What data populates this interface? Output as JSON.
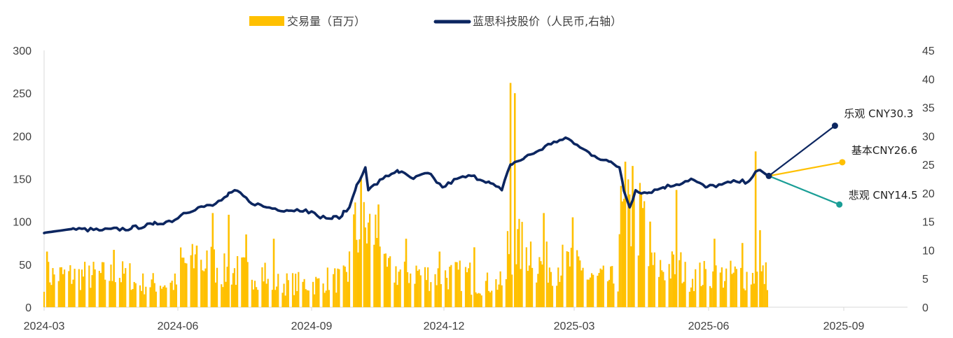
{
  "colors": {
    "volume": "#FFC000",
    "price": "#0C2660",
    "bull": "#0C2660",
    "base": "#FFC000",
    "bear": "#1A9E96",
    "axis": "#D9D9D9"
  },
  "legend": {
    "volume": "交易量（百万）",
    "price": "蓝思科技股价（人民币,右轴）"
  },
  "chart_data": {
    "type": "bar+line",
    "x_ticks": [
      "2024-03",
      "2024-06",
      "2024-09",
      "2024-12",
      "2025-03",
      "2025-06",
      "2025-09"
    ],
    "y_left": {
      "range": [
        0,
        300
      ],
      "ticks": [
        "0",
        "50",
        "100",
        "150",
        "200",
        "250",
        "300"
      ]
    },
    "y_right": {
      "range": [
        0,
        45
      ],
      "ticks": [
        "0",
        "5",
        "10",
        "15",
        "20",
        "25",
        "30",
        "35",
        "40",
        "45"
      ]
    },
    "price_series": [
      [
        "2024-03-01",
        13.0
      ],
      [
        "2024-03-20",
        13.7
      ],
      [
        "2024-04-10",
        13.5
      ],
      [
        "2024-04-30",
        13.8
      ],
      [
        "2024-05-15",
        14.5
      ],
      [
        "2024-05-30",
        15.3
      ],
      [
        "2024-06-05",
        16.5
      ],
      [
        "2024-06-15",
        17.5
      ],
      [
        "2024-06-25",
        17.8
      ],
      [
        "2024-07-05",
        19.5
      ],
      [
        "2024-07-12",
        20.4
      ],
      [
        "2024-07-20",
        18.5
      ],
      [
        "2024-08-01",
        17.5
      ],
      [
        "2024-08-15",
        17.0
      ],
      [
        "2024-08-28",
        17.1
      ],
      [
        "2024-09-05",
        16.0
      ],
      [
        "2024-09-15",
        15.5
      ],
      [
        "2024-09-22",
        16.0
      ],
      [
        "2024-09-27",
        17.5
      ],
      [
        "2024-10-01",
        20.5
      ],
      [
        "2024-10-08",
        24.5
      ],
      [
        "2024-10-10",
        20.5
      ],
      [
        "2024-10-20",
        22.5
      ],
      [
        "2024-10-30",
        24.0
      ],
      [
        "2024-11-10",
        22.5
      ],
      [
        "2024-11-20",
        23.5
      ],
      [
        "2024-11-30",
        21.0
      ],
      [
        "2024-12-10",
        22.5
      ],
      [
        "2024-12-20",
        23.0
      ],
      [
        "2025-01-01",
        22.0
      ],
      [
        "2025-01-10",
        20.5
      ],
      [
        "2025-01-16",
        25.0
      ],
      [
        "2025-01-25",
        26.0
      ],
      [
        "2025-02-05",
        27.5
      ],
      [
        "2025-02-15",
        29.0
      ],
      [
        "2025-02-25",
        29.5
      ],
      [
        "2025-03-05",
        28.0
      ],
      [
        "2025-03-15",
        26.5
      ],
      [
        "2025-03-25",
        25.5
      ],
      [
        "2025-04-01",
        24.5
      ],
      [
        "2025-04-03",
        22.0
      ],
      [
        "2025-04-08",
        17.5
      ],
      [
        "2025-04-12",
        20.5
      ],
      [
        "2025-04-20",
        20.0
      ],
      [
        "2025-05-01",
        21.0
      ],
      [
        "2025-05-10",
        21.5
      ],
      [
        "2025-05-20",
        22.5
      ],
      [
        "2025-05-30",
        21.0
      ],
      [
        "2025-06-10",
        21.5
      ],
      [
        "2025-06-20",
        22.0
      ],
      [
        "2025-06-28",
        22.0
      ],
      [
        "2025-07-05",
        24.0
      ],
      [
        "2025-07-12",
        23.0
      ]
    ],
    "scenarios": [
      {
        "label": "乐观 CNY30.3",
        "start": [
          "2025-07-12",
          23.0
        ],
        "end": [
          "2025-08-26",
          31.8
        ],
        "color_key": "bull"
      },
      {
        "label": "基本CNY26.6",
        "start": [
          "2025-07-12",
          23.0
        ],
        "end": [
          "2025-08-31",
          25.4
        ],
        "color_key": "base"
      },
      {
        "label": "悲观 CNY14.5",
        "start": [
          "2025-07-12",
          23.0
        ],
        "end": [
          "2025-08-29",
          18.0
        ],
        "color_key": "bear"
      }
    ],
    "volume_segments": [
      [
        "2024-03-01",
        "2024-05-01",
        40
      ],
      [
        "2024-05-01",
        "2024-06-01",
        30
      ],
      [
        "2024-06-01",
        "2024-07-01",
        55
      ],
      [
        "2024-07-01",
        "2024-08-01",
        45
      ],
      [
        "2024-08-01",
        "2024-09-10",
        30
      ],
      [
        "2024-09-10",
        "2024-09-27",
        35
      ],
      [
        "2024-09-27",
        "2024-10-20",
        95
      ],
      [
        "2024-10-20",
        "2024-11-15",
        45
      ],
      [
        "2024-11-15",
        "2024-12-20",
        40
      ],
      [
        "2024-12-20",
        "2025-01-14",
        30
      ],
      [
        "2025-01-14",
        "2025-02-01",
        75
      ],
      [
        "2025-02-01",
        "2025-03-10",
        55
      ],
      [
        "2025-03-10",
        "2025-04-01",
        35
      ],
      [
        "2025-04-01",
        "2025-04-20",
        110
      ],
      [
        "2025-04-20",
        "2025-05-15",
        50
      ],
      [
        "2025-05-15",
        "2025-07-12",
        40
      ]
    ],
    "volume_spikes": [
      [
        "2024-03-03",
        65
      ],
      [
        "2024-04-18",
        67
      ],
      [
        "2024-06-14",
        72
      ],
      [
        "2024-06-25",
        110
      ],
      [
        "2024-07-06",
        108
      ],
      [
        "2024-07-18",
        85
      ],
      [
        "2024-08-06",
        80
      ],
      [
        "2024-10-05",
        152
      ],
      [
        "2024-10-17",
        120
      ],
      [
        "2024-11-05",
        80
      ],
      [
        "2024-11-28",
        65
      ],
      [
        "2024-12-22",
        70
      ],
      [
        "2025-01-16",
        262
      ],
      [
        "2025-01-19",
        250
      ],
      [
        "2025-02-08",
        110
      ],
      [
        "2025-02-28",
        105
      ],
      [
        "2025-04-05",
        170
      ],
      [
        "2025-04-10",
        165
      ],
      [
        "2025-04-22",
        100
      ],
      [
        "2025-05-10",
        137
      ],
      [
        "2025-06-05",
        80
      ],
      [
        "2025-06-24",
        75
      ],
      [
        "2025-07-03",
        182
      ],
      [
        "2025-07-06",
        90
      ]
    ]
  }
}
